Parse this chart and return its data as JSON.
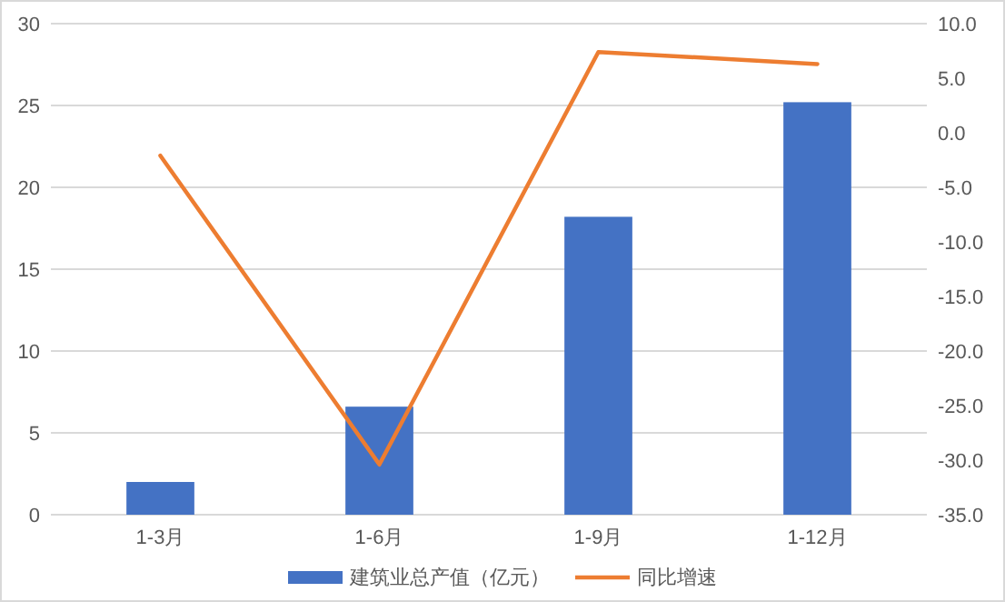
{
  "chart_data": {
    "type": "bar",
    "categories": [
      "1-3月",
      "1-6月",
      "1-9月",
      "1-12月"
    ],
    "series": [
      {
        "name": "建筑业总产值（亿元）",
        "color": "#4472c4",
        "values": [
          2.0,
          6.6,
          18.2,
          25.2
        ]
      },
      {
        "name": "同比增速",
        "type": "line",
        "axis": "y2",
        "color": "#ed7d31",
        "values": [
          -2.1,
          -30.4,
          7.4,
          6.3
        ]
      }
    ],
    "ylim": [
      0,
      30
    ],
    "yticks": [
      0,
      5,
      10,
      15,
      20,
      25,
      30
    ],
    "y2lim": [
      -35,
      10
    ],
    "y2ticks": [
      {
        "value": -35,
        "label": "-35.0"
      },
      {
        "value": -30,
        "label": "-30.0"
      },
      {
        "value": -25,
        "label": "-25.0"
      },
      {
        "value": -20,
        "label": "-20.0"
      },
      {
        "value": -15,
        "label": "-15.0"
      },
      {
        "value": -10,
        "label": "-10.0"
      },
      {
        "value": -5,
        "label": "-5.0"
      },
      {
        "value": 0,
        "label": "0.0"
      },
      {
        "value": 5,
        "label": "5.0"
      },
      {
        "value": 10,
        "label": "10.0"
      }
    ],
    "grid": "y",
    "legend": "bottom",
    "marker": "none",
    "line_style": "solid"
  }
}
